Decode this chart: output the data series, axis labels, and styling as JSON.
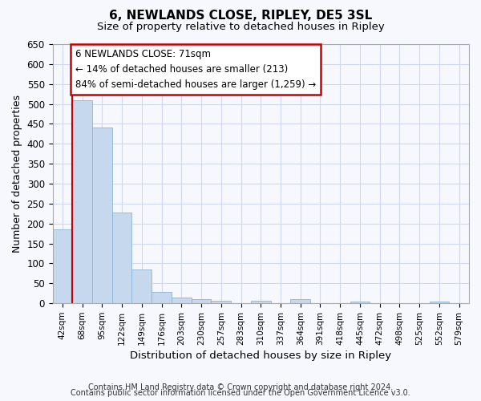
{
  "title": "6, NEWLANDS CLOSE, RIPLEY, DE5 3SL",
  "subtitle": "Size of property relative to detached houses in Ripley",
  "xlabel": "Distribution of detached houses by size in Ripley",
  "ylabel": "Number of detached properties",
  "bar_color": "#c5d8ee",
  "bar_edge_color": "#8ab4d8",
  "vline_color": "#cc0000",
  "vline_x_idx": 1,
  "annotation_line1": "6 NEWLANDS CLOSE: 71sqm",
  "annotation_line2": "← 14% of detached houses are smaller (213)",
  "annotation_line3": "84% of semi-detached houses are larger (1,259) →",
  "annotation_box_color": "#cc0000",
  "categories": [
    "42sqm",
    "68sqm",
    "95sqm",
    "122sqm",
    "149sqm",
    "176sqm",
    "203sqm",
    "230sqm",
    "257sqm",
    "283sqm",
    "310sqm",
    "337sqm",
    "364sqm",
    "391sqm",
    "418sqm",
    "445sqm",
    "472sqm",
    "498sqm",
    "525sqm",
    "552sqm",
    "579sqm"
  ],
  "values": [
    185,
    510,
    440,
    228,
    85,
    28,
    15,
    10,
    7,
    0,
    7,
    0,
    10,
    0,
    0,
    5,
    0,
    0,
    0,
    5,
    0
  ],
  "ylim": [
    0,
    650
  ],
  "yticks": [
    0,
    50,
    100,
    150,
    200,
    250,
    300,
    350,
    400,
    450,
    500,
    550,
    600,
    650
  ],
  "footer_line1": "Contains HM Land Registry data © Crown copyright and database right 2024.",
  "footer_line2": "Contains public sector information licensed under the Open Government Licence v3.0.",
  "bg_color": "#f7f8fe",
  "plot_bg_color": "#f7f8fe",
  "grid_color": "#d0d8f0"
}
